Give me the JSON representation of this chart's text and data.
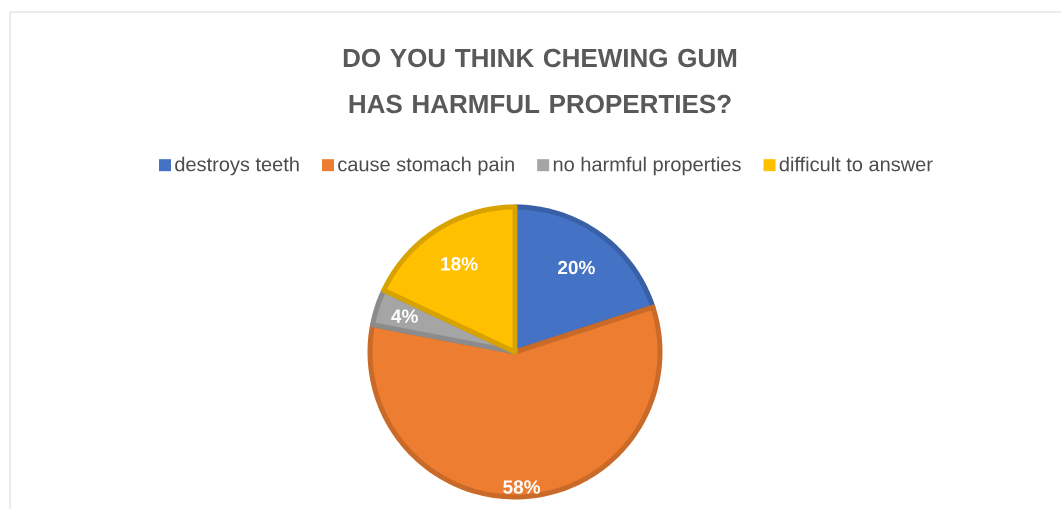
{
  "chart_data": {
    "type": "pie",
    "title": "DO YOU THINK CHEWING GUM HAS HARMFUL PROPERTIES?",
    "categories": [
      "destroys teeth",
      "cause stomach pain",
      "no harmful properties",
      "difficult to answer"
    ],
    "values": [
      20,
      58,
      4,
      18
    ],
    "colors": [
      "#4472c4",
      "#ed7d31",
      "#a5a5a5",
      "#ffc000"
    ],
    "value_labels": [
      "20%",
      "58%",
      "4%",
      "18%"
    ],
    "legend": "top"
  }
}
